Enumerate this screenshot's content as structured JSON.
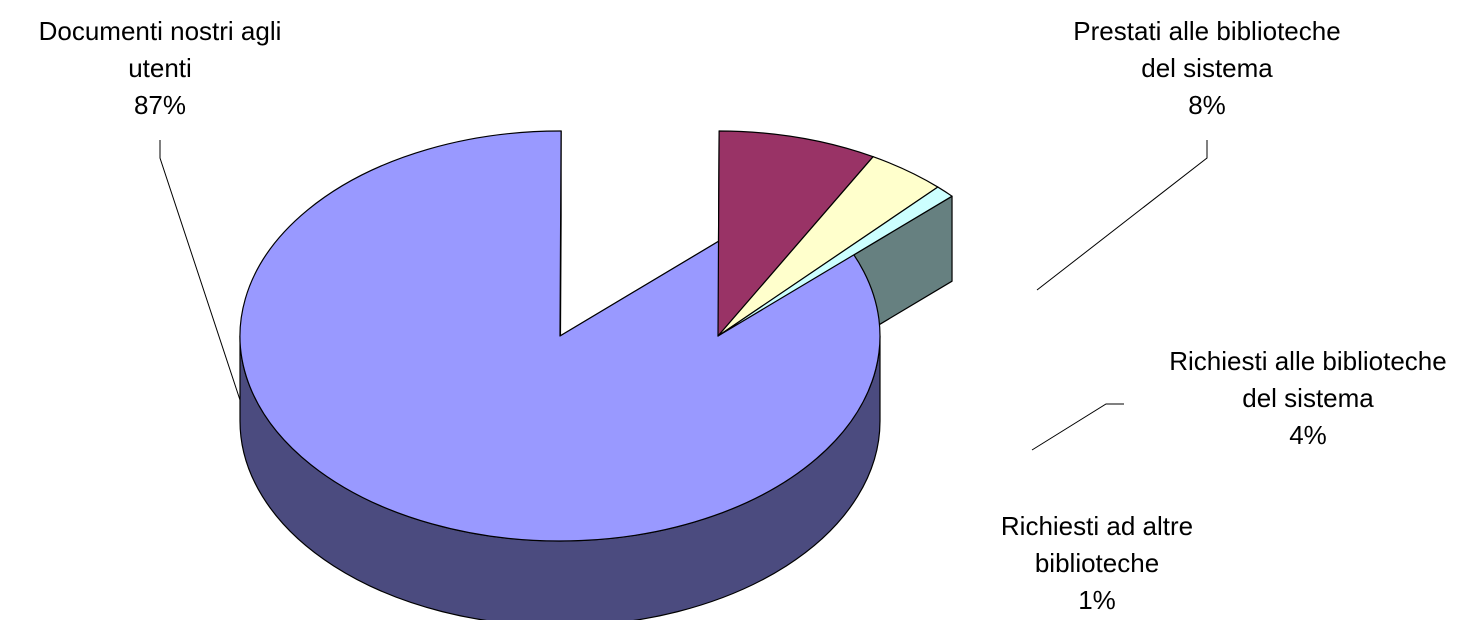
{
  "chart_data": {
    "type": "pie",
    "style": "3d-exploded",
    "title": "",
    "slices": [
      {
        "label_lines": [
          "Documenti nostri agli",
          "utenti"
        ],
        "percent_label": "87%",
        "value": 87,
        "color_top": "#9999ff",
        "color_side": "#4b4b7f",
        "exploded": false
      },
      {
        "label_lines": [
          "Prestati alle biblioteche",
          "del sistema"
        ],
        "percent_label": "8%",
        "value": 8,
        "color_top": "#993366",
        "color_side": "#4c1a33",
        "exploded": true
      },
      {
        "label_lines": [
          "Richiesti alle biblioteche",
          "del sistema"
        ],
        "percent_label": "4%",
        "value": 4,
        "color_top": "#ffffcc",
        "color_side": "#7f7f66",
        "exploded": true
      },
      {
        "label_lines": [
          "Richiesti ad altre",
          "biblioteche"
        ],
        "percent_label": "1%",
        "value": 1,
        "color_top": "#ccffff",
        "color_side": "#668080",
        "exploded": true
      }
    ]
  }
}
